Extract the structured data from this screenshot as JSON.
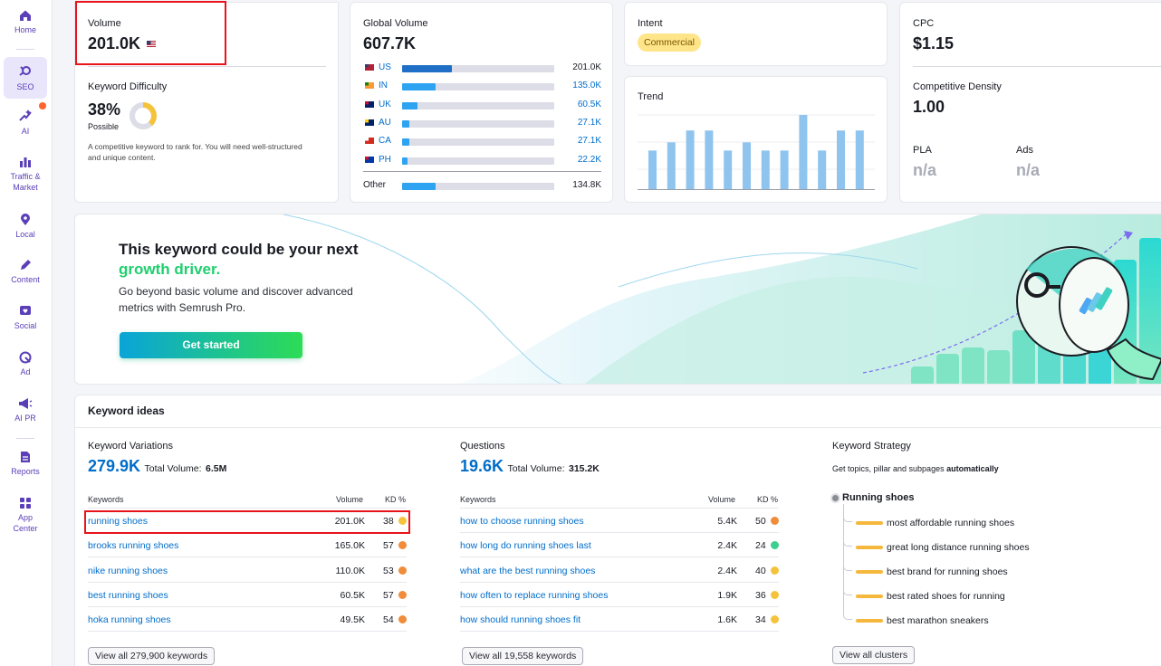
{
  "sidebar": {
    "items": [
      {
        "label": "Home",
        "icon": "home-icon"
      },
      {
        "label": "SEO",
        "icon": "seo-icon"
      },
      {
        "label": "AI",
        "icon": "ai-sparkle-icon"
      },
      {
        "label": "Traffic &",
        "label2": "Market",
        "icon": "traffic-chart-icon"
      },
      {
        "label": "Local",
        "icon": "location-pin-icon"
      },
      {
        "label": "Content",
        "icon": "pen-icon"
      },
      {
        "label": "Social",
        "icon": "heart-chat-icon"
      },
      {
        "label": "Ad",
        "icon": "ad-target-icon"
      },
      {
        "label": "AI PR",
        "icon": "megaphone-icon"
      },
      {
        "label": "Reports",
        "icon": "report-document-icon"
      },
      {
        "label": "App",
        "label2": "Center",
        "icon": "app-grid-icon"
      }
    ]
  },
  "volume": {
    "label": "Volume",
    "value": "201.0K"
  },
  "kd": {
    "label": "Keyword Difficulty",
    "value": "38%",
    "level": "Possible",
    "percent": 38,
    "description": "A competitive keyword to rank for. You will need well-structured and unique content."
  },
  "global_volume": {
    "label": "Global Volume",
    "value": "607.7K",
    "countries": [
      {
        "code": "US",
        "value": "201.0K",
        "share": 0.33,
        "link": false
      },
      {
        "code": "IN",
        "value": "135.0K",
        "share": 0.22,
        "link": true
      },
      {
        "code": "UK",
        "value": "60.5K",
        "share": 0.1,
        "link": true
      },
      {
        "code": "AU",
        "value": "27.1K",
        "share": 0.045,
        "link": true
      },
      {
        "code": "CA",
        "value": "27.1K",
        "share": 0.045,
        "link": true
      },
      {
        "code": "PH",
        "value": "22.2K",
        "share": 0.037,
        "link": true
      }
    ],
    "other": {
      "label": "Other",
      "value": "134.8K",
      "share": 0.22
    }
  },
  "intent": {
    "label": "Intent",
    "badge": "Commercial"
  },
  "trend": {
    "label": "Trend",
    "chart_data": {
      "type": "bar",
      "values": [
        0.52,
        0.63,
        0.79,
        0.79,
        0.52,
        0.63,
        0.52,
        0.52,
        1.0,
        0.52,
        0.79,
        0.79
      ]
    }
  },
  "cpc": {
    "label": "CPC",
    "value": "$1.15"
  },
  "competitive_density": {
    "label": "Competitive Density",
    "value": "1.00"
  },
  "pla": {
    "label": "PLA",
    "value": "n/a"
  },
  "ads": {
    "label": "Ads",
    "value": "n/a"
  },
  "promo": {
    "line1": "This keyword could be your next",
    "line2": "growth driver.",
    "body1": "Go beyond basic volume and discover advanced",
    "body2": "metrics with Semrush Pro.",
    "button": "Get started"
  },
  "keyword_ideas": {
    "title": "Keyword ideas",
    "variations": {
      "label": "Keyword Variations",
      "count": "279.9K",
      "total_label": "Total Volume:",
      "total_value": "6.5M",
      "col_keyword": "Keywords",
      "col_volume": "Volume",
      "col_kd": "KD %",
      "rows": [
        {
          "keyword": "running shoes",
          "volume": "201.0K",
          "kd": "38",
          "color": "#f5c33b"
        },
        {
          "keyword": "brooks running shoes",
          "volume": "165.0K",
          "kd": "57",
          "color": "#f08c3a"
        },
        {
          "keyword": "nike running shoes",
          "volume": "110.0K",
          "kd": "53",
          "color": "#f08c3a"
        },
        {
          "keyword": "best running shoes",
          "volume": "60.5K",
          "kd": "57",
          "color": "#f08c3a"
        },
        {
          "keyword": "hoka running shoes",
          "volume": "49.5K",
          "kd": "54",
          "color": "#f08c3a"
        }
      ],
      "view_all": "View all 279,900 keywords"
    },
    "questions": {
      "label": "Questions",
      "count": "19.6K",
      "total_label": "Total Volume:",
      "total_value": "315.2K",
      "col_keyword": "Keywords",
      "col_volume": "Volume",
      "col_kd": "KD %",
      "rows": [
        {
          "keyword": "how to choose running shoes",
          "volume": "5.4K",
          "kd": "50",
          "color": "#f08c3a"
        },
        {
          "keyword": "how long do running shoes last",
          "volume": "2.4K",
          "kd": "24",
          "color": "#3ccf8e"
        },
        {
          "keyword": "what are the best running shoes",
          "volume": "2.4K",
          "kd": "40",
          "color": "#f5c33b"
        },
        {
          "keyword": "how often to replace running shoes",
          "volume": "1.9K",
          "kd": "36",
          "color": "#f5c33b"
        },
        {
          "keyword": "how should running shoes fit",
          "volume": "1.6K",
          "kd": "34",
          "color": "#f5c33b"
        }
      ],
      "view_all": "View all 19,558 keywords"
    },
    "strategy": {
      "label": "Keyword Strategy",
      "desc": "Get topics, pillar and subpages",
      "desc_bold": "automatically",
      "root": "Running shoes",
      "items": [
        "most affordable running shoes",
        "great long distance running shoes",
        "best brand for running shoes",
        "best rated shoes for running",
        "best marathon sneakers"
      ],
      "view_all": "View all clusters"
    }
  }
}
